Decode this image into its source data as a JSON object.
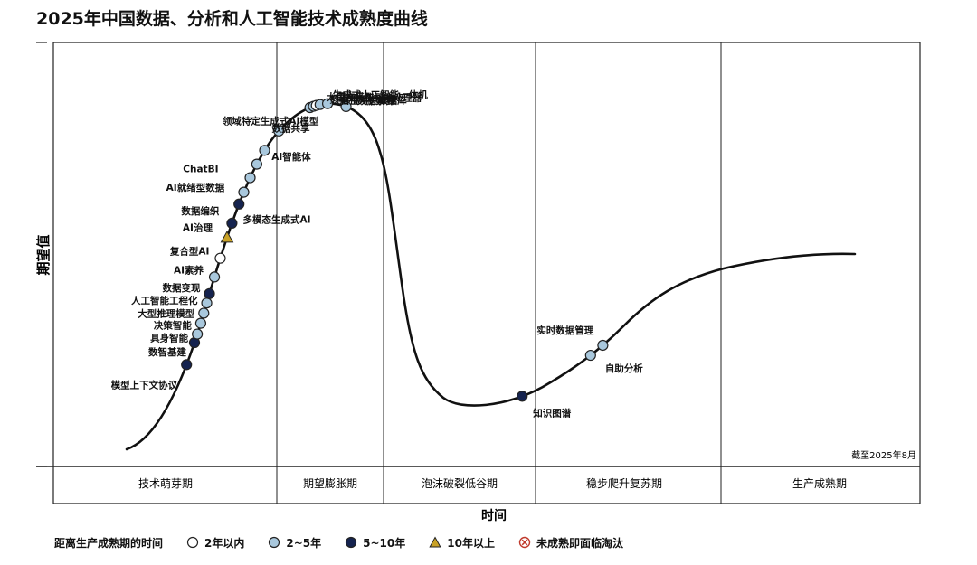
{
  "chart_data": {
    "type": "scatter",
    "title": "2025年中国数据、分析和人工智能技术成熟度曲线",
    "ylabel": "期望值",
    "xlabel": "时间",
    "note": "截至2025年8月",
    "phases": [
      "技术萌芽期",
      "期望膨胀期",
      "泡沫破裂低谷期",
      "稳步爬升复苏期",
      "生产成熟期"
    ],
    "legend": {
      "title": "距离生产成熟期的时间",
      "items": [
        {
          "key": "lt2",
          "label": "2年以内",
          "color": "#ffffff",
          "shape": "circle"
        },
        {
          "key": "2to5",
          "label": "2~5年",
          "color": "#a9c8dd",
          "shape": "circle"
        },
        {
          "key": "5to10",
          "label": "5~10年",
          "color": "#15234f",
          "shape": "circle"
        },
        {
          "key": "gt10",
          "label": "10年以上",
          "color": "#c9a227",
          "shape": "triangle"
        },
        {
          "key": "obsolete",
          "label": "未成熟即面临淘汰",
          "color": "#c0392b",
          "shape": "cross"
        }
      ]
    },
    "points": [
      {
        "name": "模型上下文协议",
        "category": "5to10",
        "t": 0.1535
      },
      {
        "name": "数智基建",
        "category": "5to10",
        "t": 0.1628
      },
      {
        "name": "具身智能",
        "category": "2to5",
        "t": 0.1661
      },
      {
        "name": "决策智能",
        "category": "2to5",
        "t": 0.17
      },
      {
        "name": "大型推理模型",
        "category": "2to5",
        "t": 0.1735
      },
      {
        "name": "人工智能工程化",
        "category": "2to5",
        "t": 0.177
      },
      {
        "name": "数据变现",
        "category": "5to10",
        "t": 0.18
      },
      {
        "name": "AI素养",
        "category": "2to5",
        "t": 0.1858
      },
      {
        "name": "复合型AI",
        "category": "lt2",
        "t": 0.1925
      },
      {
        "name": "AI治理",
        "category": "gt10",
        "t": 0.2003
      },
      {
        "name": "数据编织",
        "category": "5to10",
        "t": 0.2061
      },
      {
        "name": "AI就绪型数据",
        "category": "5to10",
        "t": 0.2141
      },
      {
        "name": "ChatBI",
        "category": "2to5",
        "t": 0.2198
      },
      {
        "name": "多模态生成式AI",
        "category": "2to5",
        "t": 0.227
      },
      {
        "name": "领域特定生成式AI模型",
        "category": "2to5",
        "t": 0.2346
      },
      {
        "name": "数据共享",
        "category": "2to5",
        "t": 0.2439
      },
      {
        "name": "AI智能体",
        "category": "2to5",
        "t": 0.2602
      },
      {
        "name": "大语言模型",
        "category": "2to5",
        "t": 0.2963
      },
      {
        "name": "数据和分析治理",
        "category": "2to5",
        "t": 0.3002
      },
      {
        "name": "生成式人工智能一体机",
        "category": "lt2",
        "t": 0.3037
      },
      {
        "name": "国产人工智能处理器",
        "category": "2to5",
        "t": 0.3076
      },
      {
        "name": "自主可控数据库",
        "category": "2to5",
        "t": 0.3164
      },
      {
        "name": "数据素养",
        "category": "2to5",
        "t": 0.3378
      },
      {
        "name": "知识图谱",
        "category": "5to10",
        "t": 0.541
      },
      {
        "name": "自助分析",
        "category": "2to5",
        "t": 0.6201
      },
      {
        "name": "实时数据管理",
        "category": "2to5",
        "t": 0.6343
      }
    ]
  }
}
